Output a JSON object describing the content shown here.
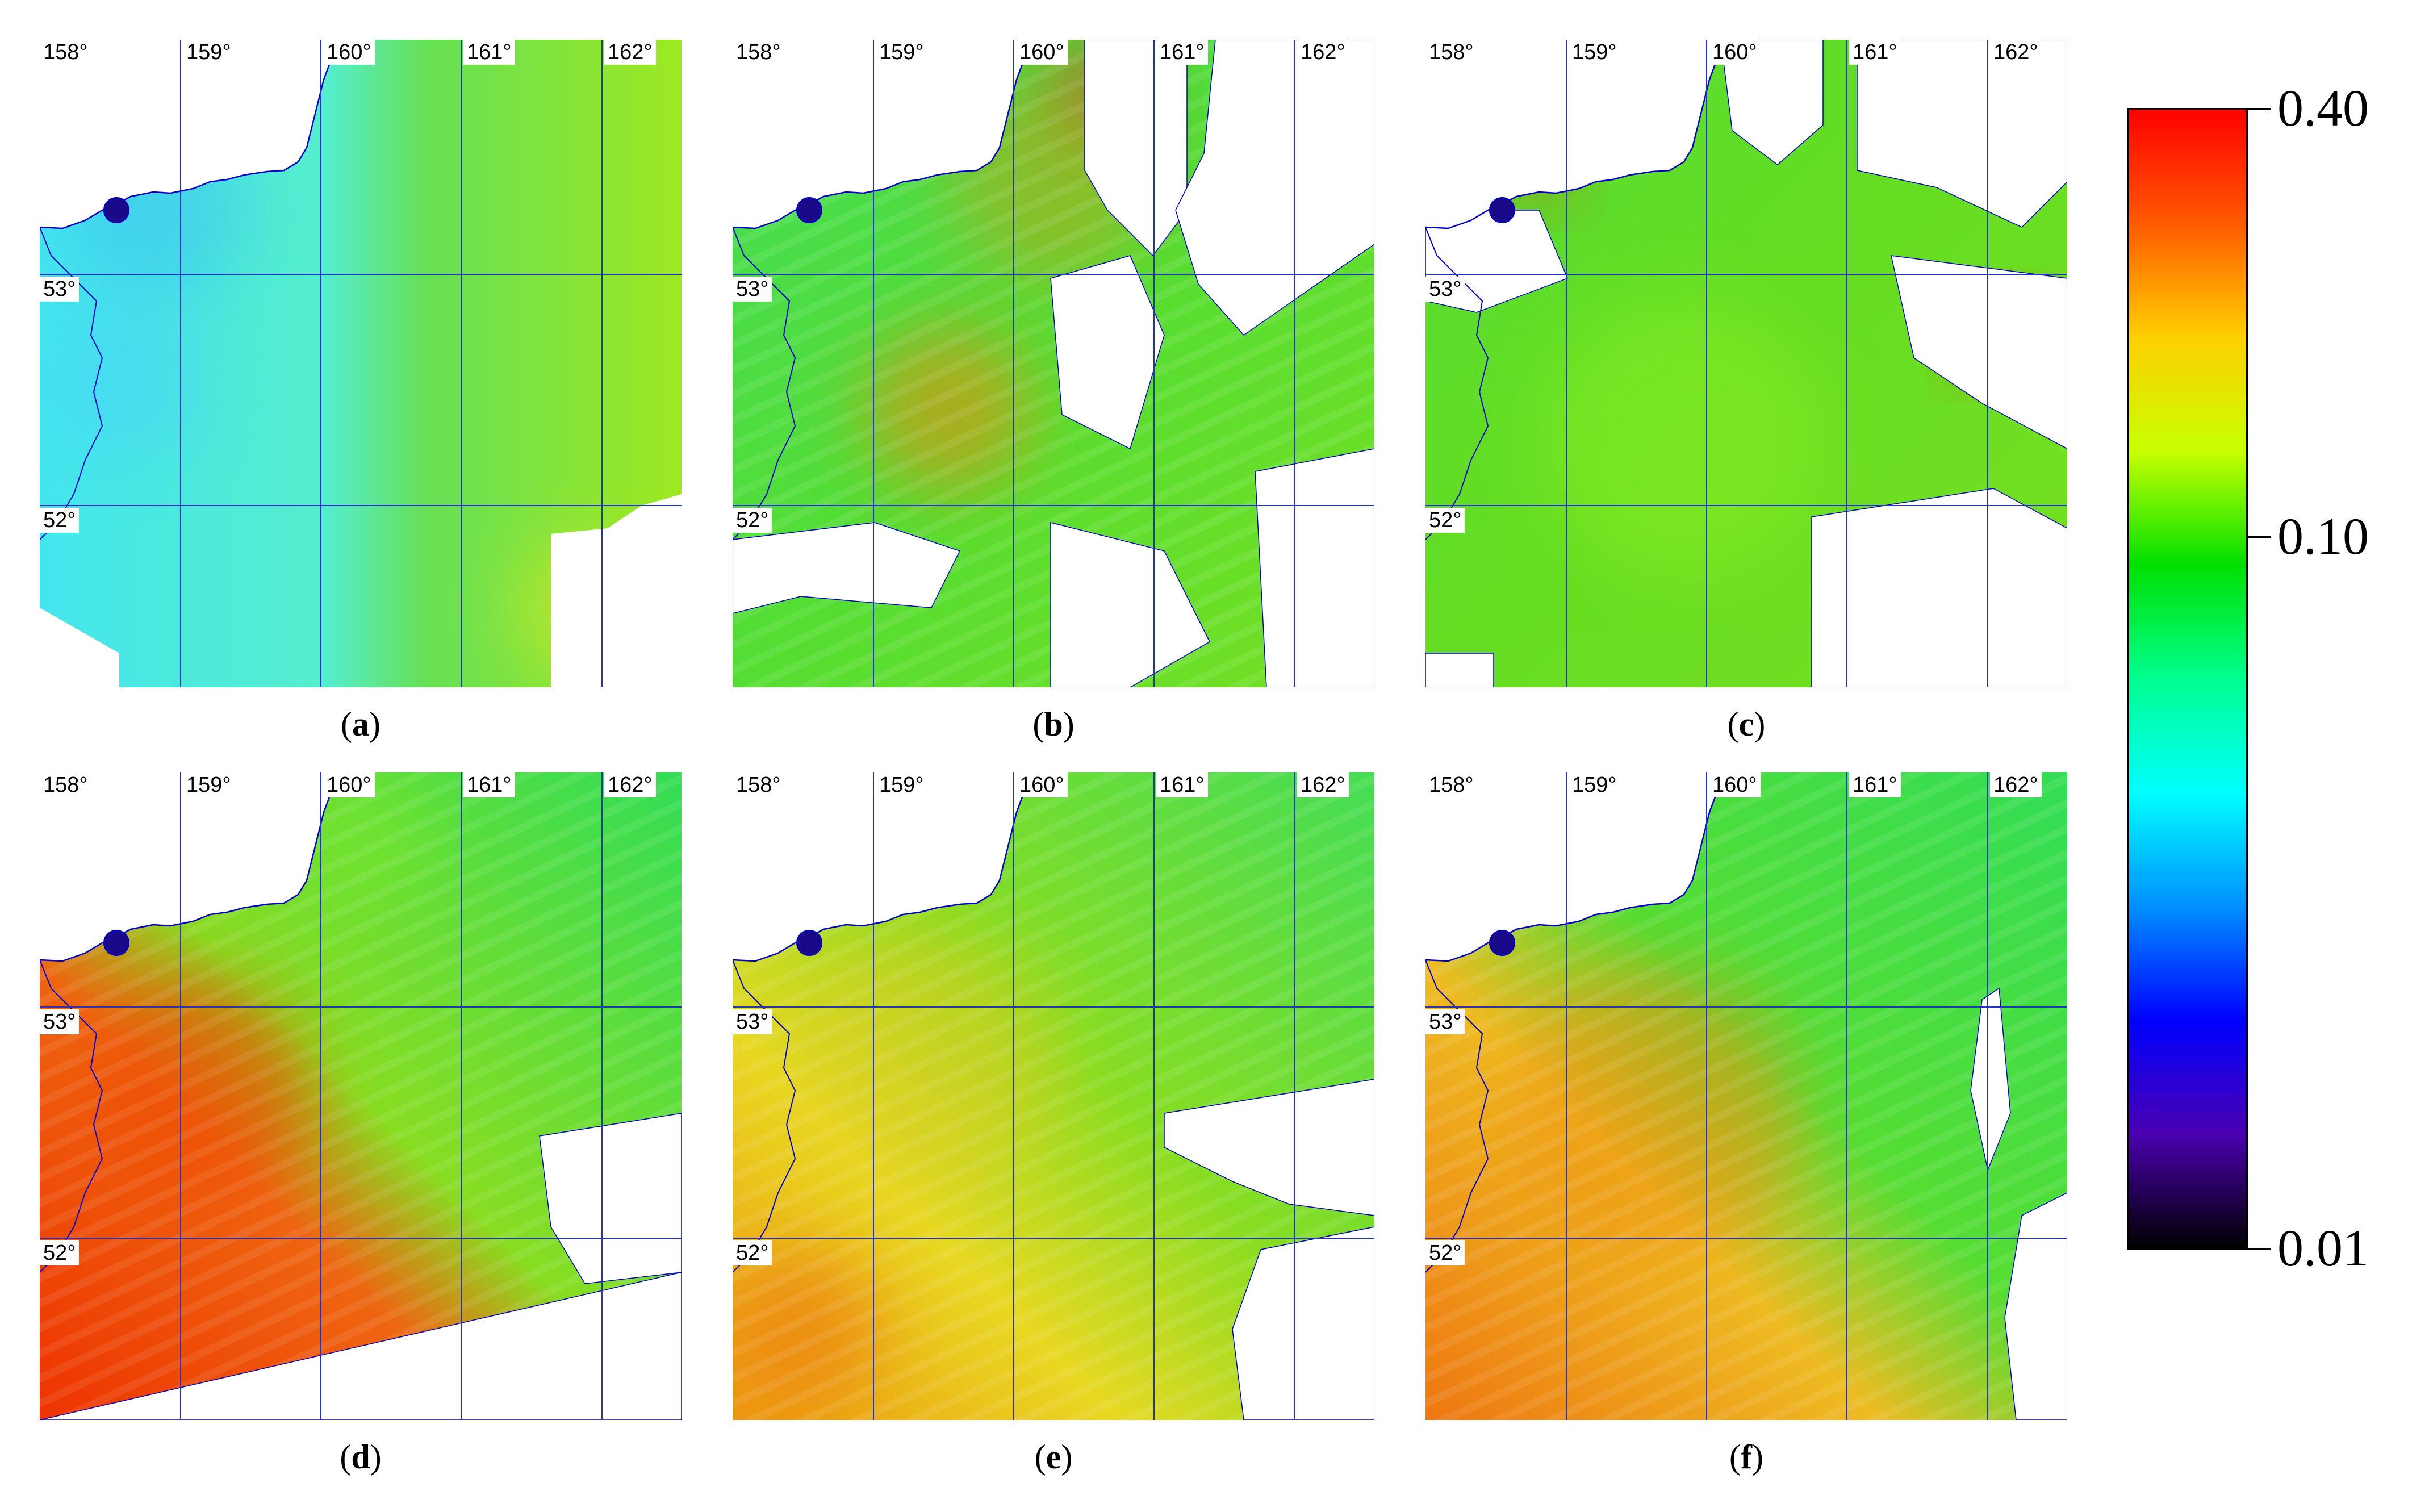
{
  "colors": {
    "land": "#ffffff",
    "coastline": "#0000cc",
    "gridline": "#2233cc",
    "cold": "#33e0ff",
    "green": "#22dd22",
    "lightgreen": "#88ee22",
    "yellow": "#e8e822",
    "orange": "#ee8811",
    "red": "#ee2200",
    "darkblue": "#1a0a8a"
  },
  "map": {
    "longitudes": [
      "158°",
      "159°",
      "160°",
      "161°",
      "162°"
    ],
    "latitudes": [
      "53°",
      "52°"
    ]
  },
  "panels": [
    {
      "id": "a",
      "caption": "a",
      "base_color": "cyan-to-green"
    },
    {
      "id": "b",
      "caption": "b",
      "base_color": "green-yellow with cloud gaps"
    },
    {
      "id": "c",
      "caption": "c",
      "base_color": "green with cloud gaps"
    },
    {
      "id": "d",
      "caption": "d",
      "base_color": "red-orange to green"
    },
    {
      "id": "e",
      "caption": "e",
      "base_color": "yellow to green"
    },
    {
      "id": "f",
      "caption": "f",
      "base_color": "orange to green"
    }
  ],
  "colorbar": {
    "scale": "log",
    "ticks": [
      "0.40",
      "0.10",
      "0.01"
    ],
    "stops": [
      "#ff0000",
      "#ff5a00",
      "#ffd000",
      "#c8ff00",
      "#00e000",
      "#00ff90",
      "#00ffff",
      "#0090ff",
      "#0000ff",
      "#4a00b0",
      "#000000"
    ]
  }
}
